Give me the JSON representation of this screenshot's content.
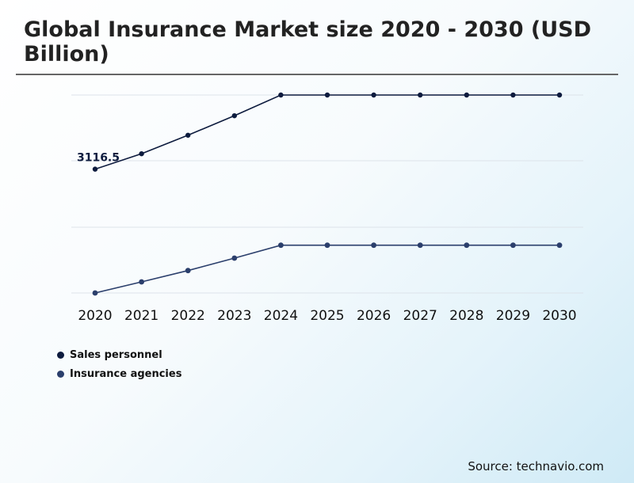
{
  "chart_data": {
    "type": "line",
    "title": "Global Insurance Market size 2020 - 2030 (USD Billion)",
    "categories": [
      "2020",
      "2021",
      "2022",
      "2023",
      "2024",
      "2025",
      "2026",
      "2027",
      "2028",
      "2029",
      "2030"
    ],
    "series": [
      {
        "name": "Sales personnel",
        "color": "#0d1b3e",
        "values": [
          3116.5,
          3243,
          3395,
          3555,
          3725,
          3725,
          3725,
          3725,
          3725,
          3725,
          3725
        ],
        "annotation": {
          "index": 0,
          "label": "3116.5"
        }
      },
      {
        "name": "Insurance agencies",
        "color": "#2b3f6c",
        "values": [
          2100,
          2191,
          2284,
          2386,
          2492,
          2492,
          2492,
          2492,
          2492,
          2492,
          2492
        ]
      }
    ],
    "ylim": [
      2100,
      3725
    ],
    "grid": true,
    "legend_position": "bottom-left",
    "xlabel": "",
    "ylabel": ""
  },
  "source": "Source: technavio.com"
}
